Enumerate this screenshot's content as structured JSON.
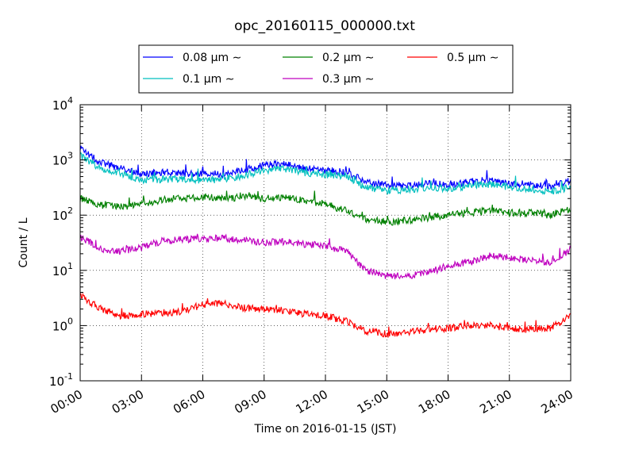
{
  "chart_data": {
    "type": "line",
    "title": "opc_20160115_000000.txt",
    "xlabel": "Time on 2016-01-15 (JST)",
    "ylabel": "Count / L",
    "yscale": "log",
    "xlim": [
      "2016-01-15 00:00",
      "2016-01-16 00:00"
    ],
    "ylim": [
      0.1,
      10000
    ],
    "grid": true,
    "legend_position": "top-center",
    "x_ticks": [
      "00:00",
      "03:00",
      "06:00",
      "09:00",
      "12:00",
      "15:00",
      "18:00",
      "21:00",
      "24:00"
    ],
    "y_ticks": [
      {
        "base": "10",
        "exp": "-1"
      },
      {
        "base": "10",
        "exp": "0"
      },
      {
        "base": "10",
        "exp": "1"
      },
      {
        "base": "10",
        "exp": "2"
      },
      {
        "base": "10",
        "exp": "3"
      },
      {
        "base": "10",
        "exp": "4"
      }
    ],
    "x": [
      "00:00",
      "01:00",
      "02:00",
      "03:00",
      "04:00",
      "05:00",
      "06:00",
      "07:00",
      "08:00",
      "09:00",
      "10:00",
      "11:00",
      "12:00",
      "13:00",
      "14:00",
      "15:00",
      "16:00",
      "17:00",
      "18:00",
      "19:00",
      "20:00",
      "21:00",
      "22:00",
      "23:00",
      "24:00"
    ],
    "series": [
      {
        "name": "0.08 μm ∼",
        "color": "#0000ff",
        "values": [
          1600,
          900,
          700,
          550,
          600,
          580,
          550,
          560,
          650,
          800,
          850,
          700,
          650,
          600,
          400,
          350,
          340,
          380,
          360,
          400,
          430,
          380,
          360,
          330,
          420
        ]
      },
      {
        "name": "0.1 μm ∼",
        "color": "#00bfbf",
        "values": [
          1200,
          700,
          550,
          420,
          450,
          450,
          430,
          450,
          520,
          650,
          700,
          580,
          540,
          500,
          320,
          280,
          290,
          320,
          300,
          340,
          360,
          320,
          300,
          270,
          320
        ]
      },
      {
        "name": "0.2 μm ∼",
        "color": "#008000",
        "values": [
          200,
          150,
          140,
          160,
          190,
          200,
          210,
          200,
          210,
          200,
          210,
          180,
          160,
          120,
          85,
          75,
          80,
          90,
          100,
          110,
          120,
          110,
          110,
          100,
          130
        ]
      },
      {
        "name": "0.3 μm ∼",
        "color": "#bf00bf",
        "values": [
          40,
          25,
          22,
          26,
          34,
          36,
          37,
          38,
          36,
          32,
          33,
          30,
          28,
          22,
          10,
          8,
          8,
          9,
          12,
          14,
          18,
          17,
          15,
          14,
          24
        ]
      },
      {
        "name": "0.5 μm ∼",
        "color": "#ff0000",
        "values": [
          3.5,
          2.0,
          1.5,
          1.6,
          1.7,
          1.8,
          2.4,
          2.5,
          2.1,
          2.0,
          1.9,
          1.6,
          1.5,
          1.2,
          0.8,
          0.7,
          0.75,
          0.85,
          0.9,
          1.0,
          1.0,
          0.9,
          0.85,
          0.9,
          1.5
        ]
      }
    ]
  }
}
